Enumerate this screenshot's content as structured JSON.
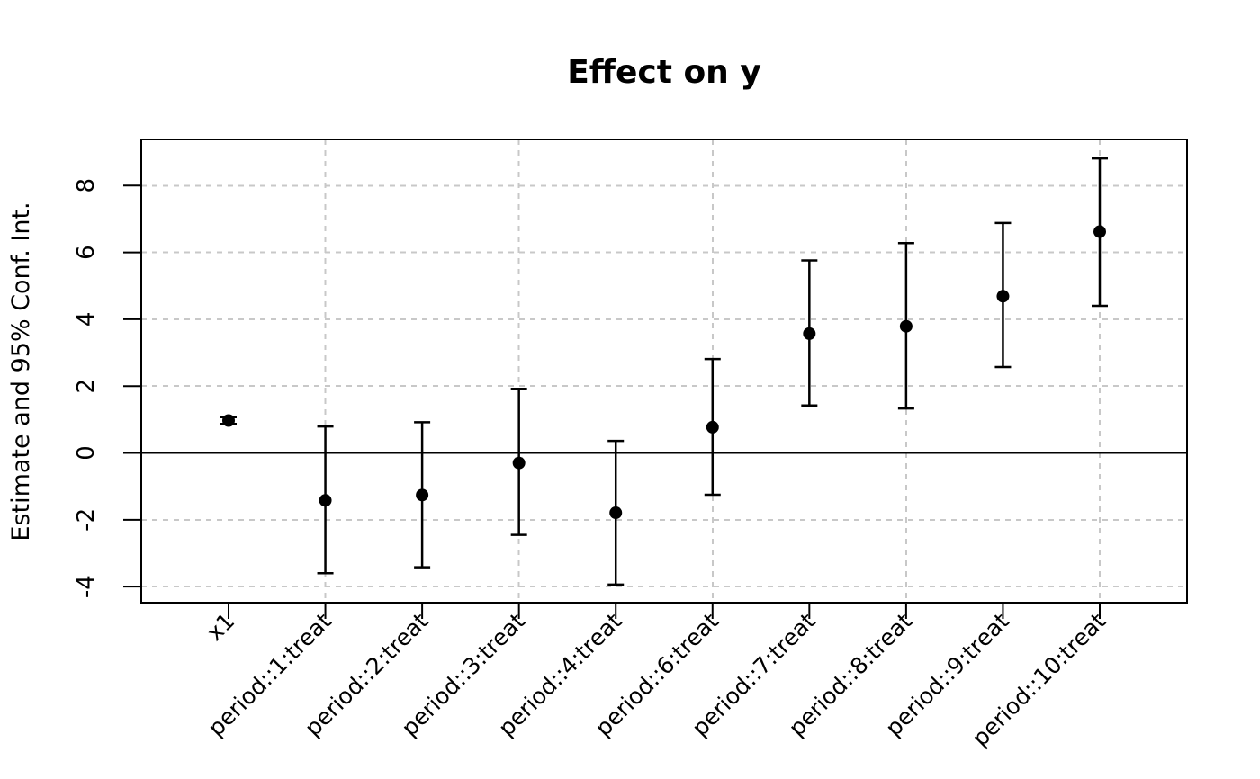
{
  "title": "Effect on y",
  "y_axis": {
    "label": "Estimate and 95% Conf. Int."
  },
  "chart_data": {
    "type": "scatter",
    "subtype": "coefficient-plot-with-error-bars",
    "title": "Effect on y",
    "xlabel": "",
    "ylabel": "Estimate and 95% Conf. Int.",
    "categories": [
      "x1",
      "period::1:treat",
      "period::2:treat",
      "period::3:treat",
      "period::4:treat",
      "period::6:treat",
      "period::7:treat",
      "period::8:treat",
      "period::9:treat",
      "period::10:treat"
    ],
    "estimates": [
      0.97,
      -1.42,
      -1.26,
      -0.3,
      -1.79,
      0.77,
      3.57,
      3.79,
      4.69,
      6.62
    ],
    "ci_low": [
      0.87,
      -3.6,
      -3.42,
      -2.45,
      -3.94,
      -1.25,
      1.42,
      1.33,
      2.57,
      4.4
    ],
    "ci_high": [
      1.07,
      0.79,
      0.92,
      1.92,
      0.36,
      2.81,
      5.76,
      6.28,
      6.88,
      8.81
    ],
    "yticks": [
      8,
      6,
      4,
      2,
      0,
      -2,
      -4
    ],
    "ylim": [
      -4.48,
      9.38
    ],
    "zero_line": true,
    "grid": true,
    "x_grid_indices": [
      1,
      3,
      5,
      7,
      9
    ],
    "legend_position": "none",
    "point_color": "#000000",
    "line_color": "#000000",
    "grid_color": "#c8c8c8",
    "background_color": "#ffffff"
  }
}
